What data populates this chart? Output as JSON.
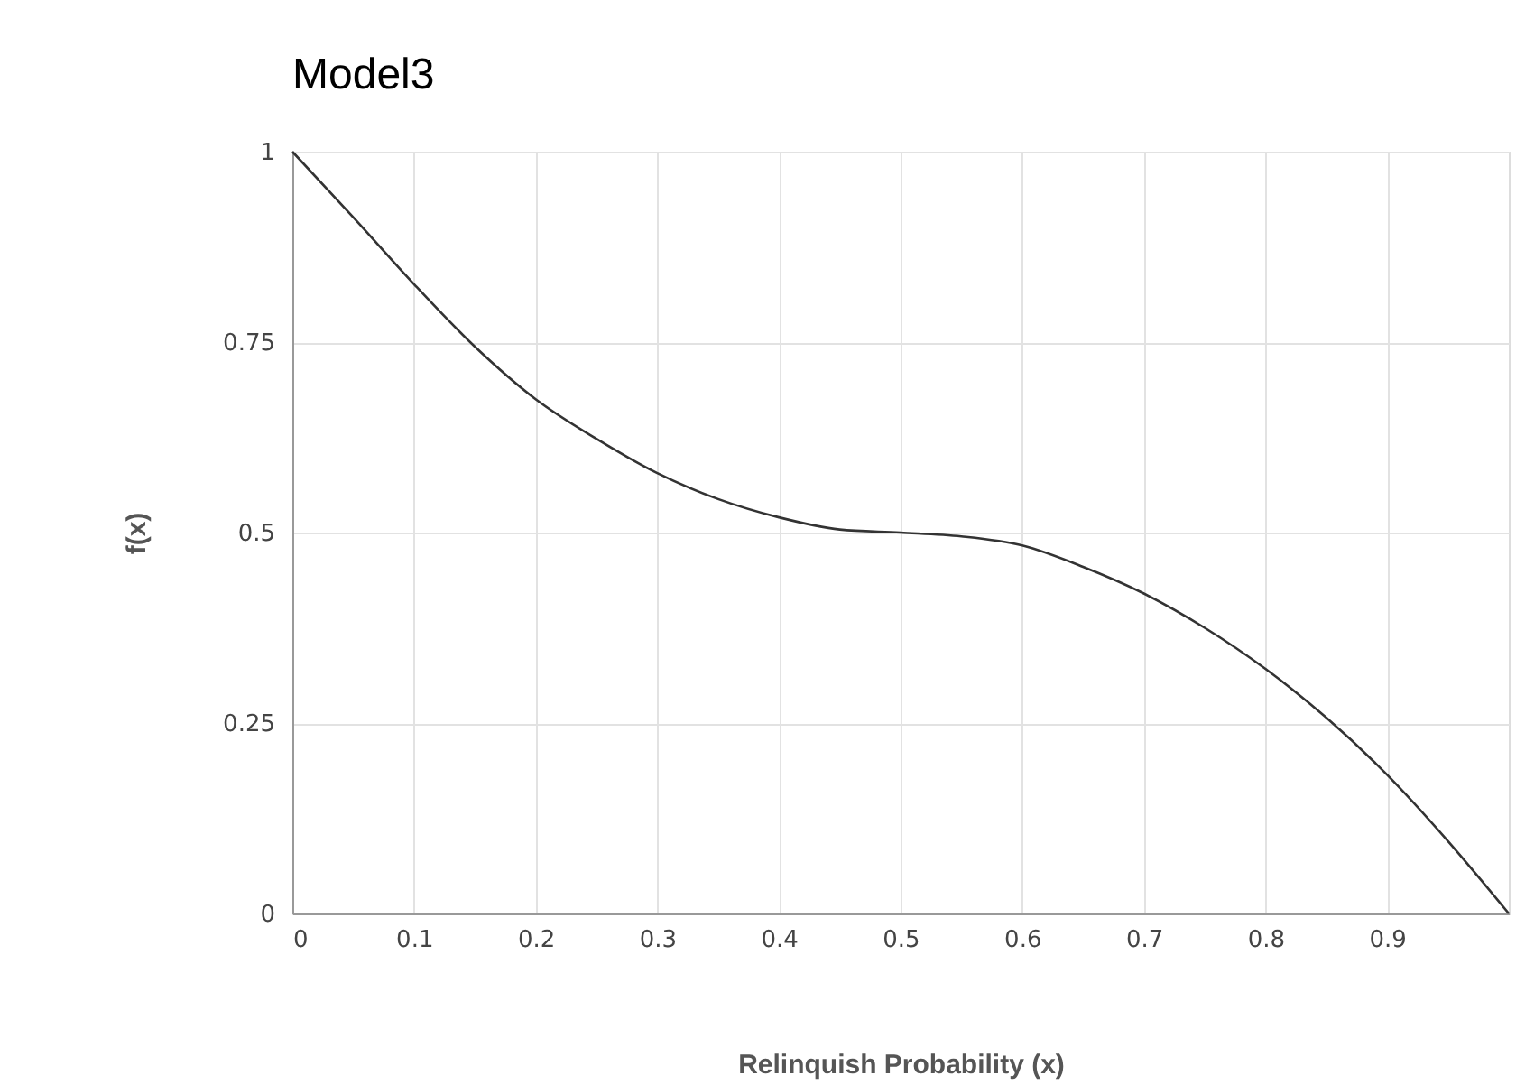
{
  "chart_data": {
    "type": "line",
    "title": "Model3",
    "xlabel": "Relinquish Probability (x)",
    "ylabel": "f(x)",
    "x": [
      0,
      0.05,
      0.1,
      0.15,
      0.2,
      0.25,
      0.3,
      0.35,
      0.4,
      0.45,
      0.5,
      0.55,
      0.6,
      0.65,
      0.7,
      0.75,
      0.8,
      0.85,
      0.9,
      0.95,
      1
    ],
    "series": [
      {
        "color": "#333333",
        "values": [
          1,
          0.914,
          0.826,
          0.744,
          0.675,
          0.623,
          0.578,
          0.544,
          0.52,
          0.504,
          0.5,
          0.495,
          0.483,
          0.455,
          0.42,
          0.375,
          0.321,
          0.257,
          0.182,
          0.095,
          0
        ]
      }
    ],
    "xlim": [
      0,
      1
    ],
    "xticks": [
      0,
      0.1,
      0.2,
      0.3,
      0.4,
      0.5,
      0.6,
      0.7,
      0.8,
      0.9
    ],
    "ylim": [
      0,
      1
    ],
    "yticks": [
      0,
      0.25,
      0.5,
      0.75,
      1
    ],
    "grid": true,
    "marker": "none",
    "line_style": "solid"
  }
}
